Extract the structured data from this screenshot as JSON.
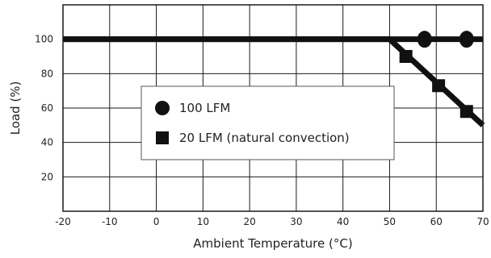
{
  "chart_data": {
    "type": "line",
    "title": "",
    "xlabel": "Ambient Temperature (°C)",
    "ylabel": "Load (%)",
    "xlim": [
      -20,
      70
    ],
    "ylim": [
      0,
      120
    ],
    "x_ticks": [
      -20,
      -10,
      0,
      10,
      20,
      30,
      40,
      50,
      60,
      70
    ],
    "y_ticks": [
      20,
      40,
      60,
      80,
      100
    ],
    "grid": true,
    "legend_position": "center-left",
    "series": [
      {
        "name": "100 LFM",
        "marker": "circle",
        "color": "#111111",
        "line": [
          [
            -20,
            100
          ],
          [
            70,
            100
          ]
        ],
        "points": [
          [
            57.5,
            100
          ],
          [
            66.5,
            100
          ]
        ]
      },
      {
        "name": "20 LFM (natural convection)",
        "marker": "square",
        "color": "#111111",
        "line": [
          [
            -20,
            100
          ],
          [
            50,
            100
          ],
          [
            70,
            50
          ]
        ],
        "points": [
          [
            53.5,
            90
          ],
          [
            60.5,
            73
          ],
          [
            66.5,
            58
          ]
        ]
      }
    ]
  }
}
